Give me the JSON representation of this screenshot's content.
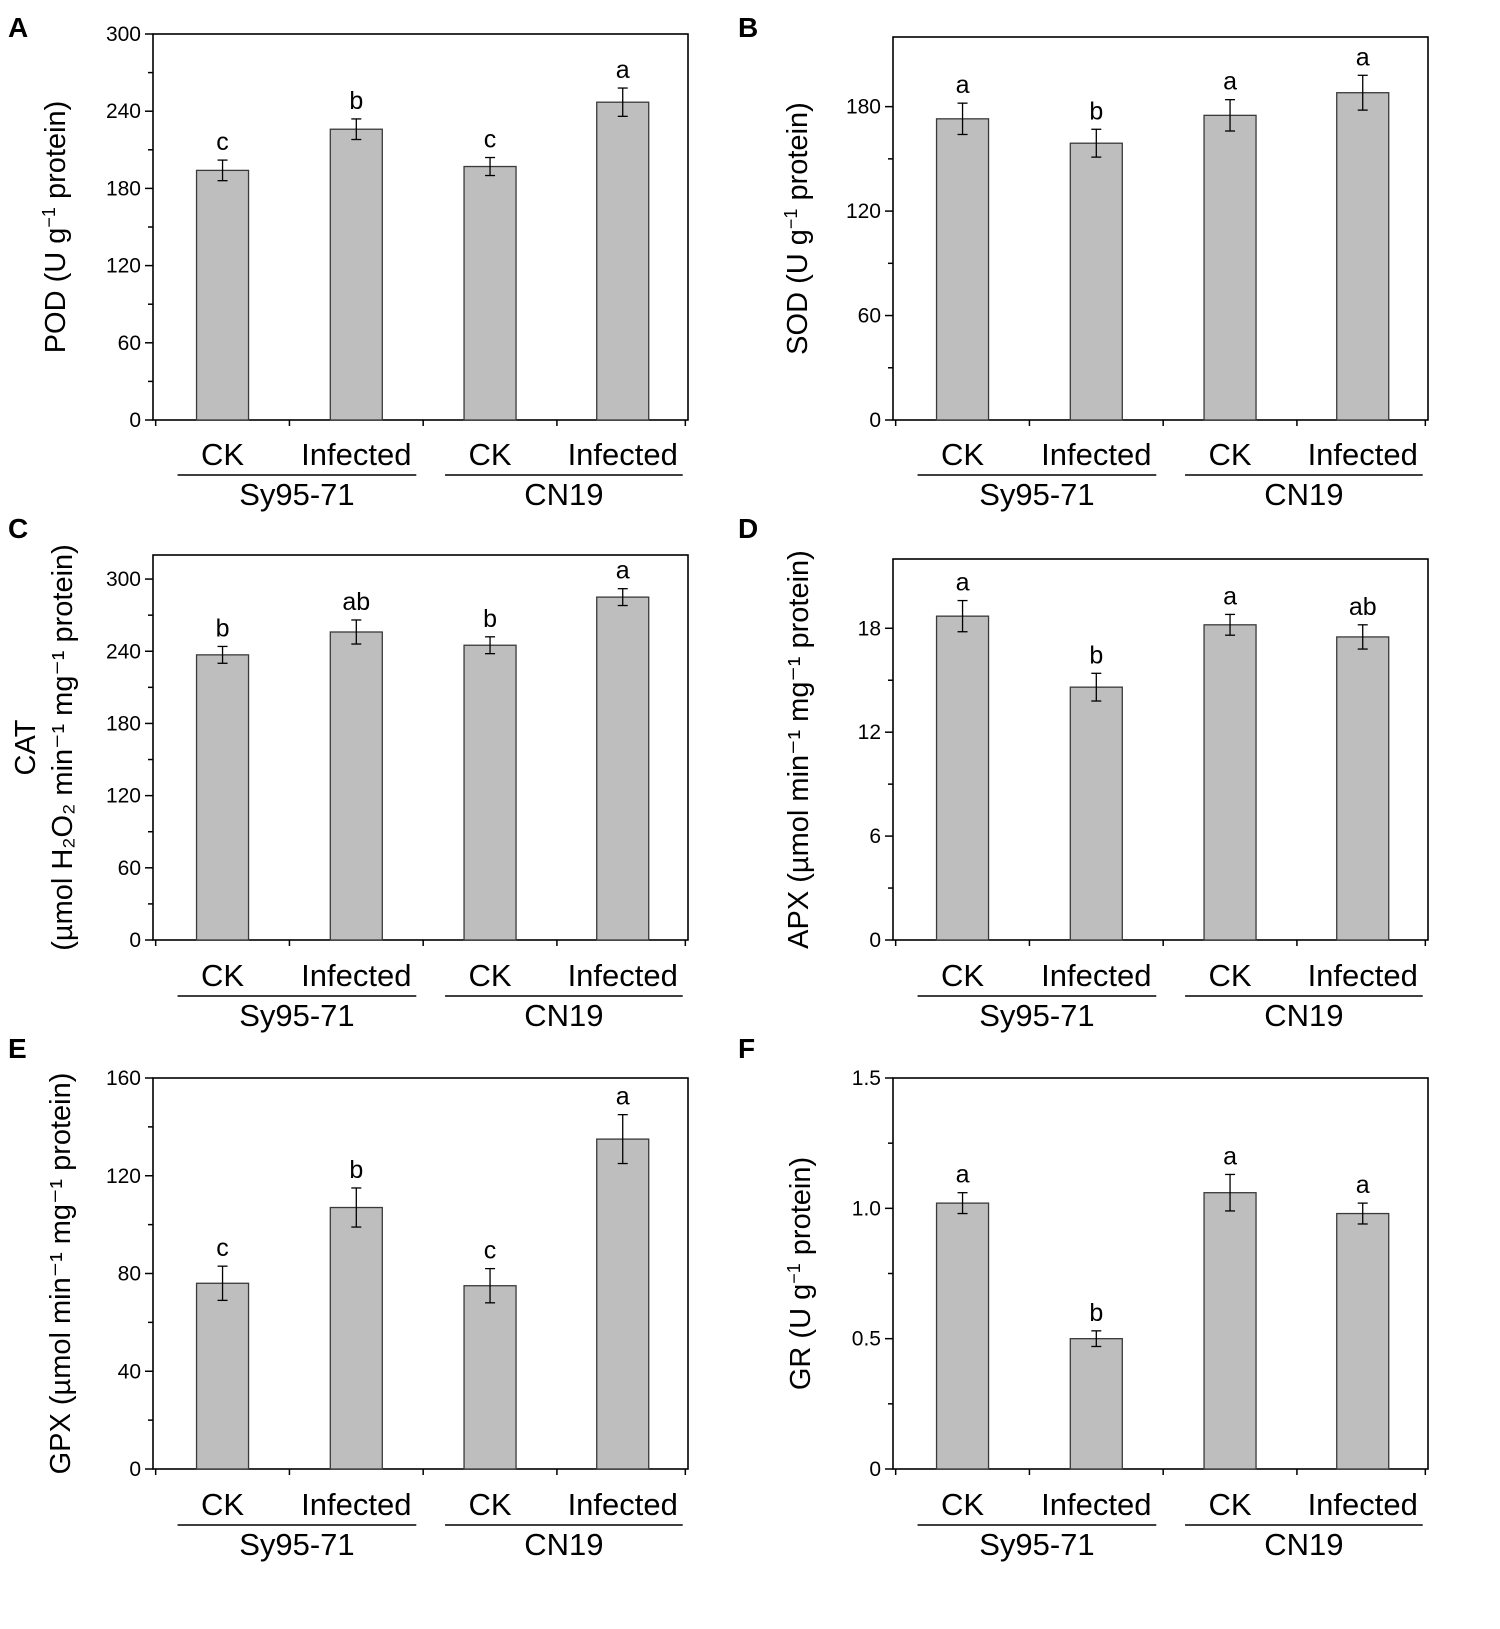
{
  "chart_data": [
    {
      "panel": "A",
      "type": "bar",
      "categories": [
        "CK",
        "Infected",
        "CK",
        "Infected"
      ],
      "groups": [
        "Sy95-71",
        "CN19"
      ],
      "values": [
        194,
        226,
        197,
        247
      ],
      "errors": [
        8,
        8,
        7,
        11
      ],
      "significance": [
        "c",
        "b",
        "c",
        "a"
      ],
      "ylabel": {
        "main": "POD (U g",
        "sup": "−1",
        "tail": " protein)"
      },
      "ylim": [
        0,
        300
      ],
      "yticks": [
        0,
        60,
        120,
        180,
        240,
        300
      ],
      "ytick_labels": [
        "0",
        "60",
        "120",
        "180",
        "240",
        "300"
      ]
    },
    {
      "panel": "B",
      "type": "bar",
      "categories": [
        "CK",
        "Infected",
        "CK",
        "Infected"
      ],
      "groups": [
        "Sy95-71",
        "CN19"
      ],
      "values": [
        173,
        159,
        175,
        188
      ],
      "errors": [
        9,
        8,
        9,
        10
      ],
      "significance": [
        "a",
        "b",
        "a",
        "a"
      ],
      "ylabel": {
        "main": "SOD (U g",
        "sup": "−1",
        "tail": " protein)"
      },
      "ylim": [
        0,
        220
      ],
      "yticks": [
        0,
        60,
        120,
        180
      ],
      "ytick_labels": [
        "0",
        "60",
        "120",
        "180"
      ]
    },
    {
      "panel": "C",
      "type": "bar",
      "categories": [
        "CK",
        "Infected",
        "CK",
        "Infected"
      ],
      "groups": [
        "Sy95-71",
        "CN19"
      ],
      "values": [
        237,
        256,
        245,
        285
      ],
      "errors": [
        7,
        10,
        7,
        7
      ],
      "significance": [
        "b",
        "ab",
        "b",
        "a"
      ],
      "ylabel_line1": "CAT",
      "ylabel_line2": "(µmol H₂O₂ min⁻¹ mg⁻¹ protein)",
      "ylim": [
        0,
        320
      ],
      "yticks": [
        0,
        60,
        120,
        180,
        240,
        300
      ],
      "ytick_labels": [
        "0",
        "60",
        "120",
        "180",
        "240",
        "300"
      ]
    },
    {
      "panel": "D",
      "type": "bar",
      "categories": [
        "CK",
        "Infected",
        "CK",
        "Infected"
      ],
      "groups": [
        "Sy95-71",
        "CN19"
      ],
      "values": [
        18.7,
        14.6,
        18.2,
        17.5
      ],
      "errors": [
        0.9,
        0.8,
        0.6,
        0.7
      ],
      "significance": [
        "a",
        "b",
        "a",
        "ab"
      ],
      "ylabel": "APX (µmol min⁻¹ mg⁻¹ protein)",
      "ylim": [
        0,
        22
      ],
      "yticks": [
        0,
        6,
        12,
        18
      ],
      "ytick_labels": [
        "0",
        "6",
        "12",
        "18"
      ]
    },
    {
      "panel": "E",
      "type": "bar",
      "categories": [
        "CK",
        "Infected",
        "CK",
        "Infected"
      ],
      "groups": [
        "Sy95-71",
        "CN19"
      ],
      "values": [
        76,
        107,
        75,
        135
      ],
      "errors": [
        7,
        8,
        7,
        10
      ],
      "significance": [
        "c",
        "b",
        "c",
        "a"
      ],
      "ylabel": "GPX (µmol min⁻¹ mg⁻¹ protein)",
      "ylim": [
        0,
        160
      ],
      "yticks": [
        0,
        40,
        80,
        120,
        160
      ],
      "ytick_labels": [
        "0",
        "40",
        "80",
        "120",
        "160"
      ]
    },
    {
      "panel": "F",
      "type": "bar",
      "categories": [
        "CK",
        "Infected",
        "CK",
        "Infected"
      ],
      "groups": [
        "Sy95-71",
        "CN19"
      ],
      "values": [
        1.02,
        0.5,
        1.06,
        0.98
      ],
      "errors": [
        0.04,
        0.03,
        0.07,
        0.04
      ],
      "significance": [
        "a",
        "b",
        "a",
        "a"
      ],
      "ylabel": {
        "main": "GR (U g",
        "sup": "−1",
        "tail": " protein)"
      },
      "ylim": [
        0,
        1.5
      ],
      "yticks": [
        0,
        0.5,
        1.0,
        1.5
      ],
      "ytick_labels": [
        "0",
        "0.5",
        "1.0",
        "1.5"
      ]
    }
  ]
}
